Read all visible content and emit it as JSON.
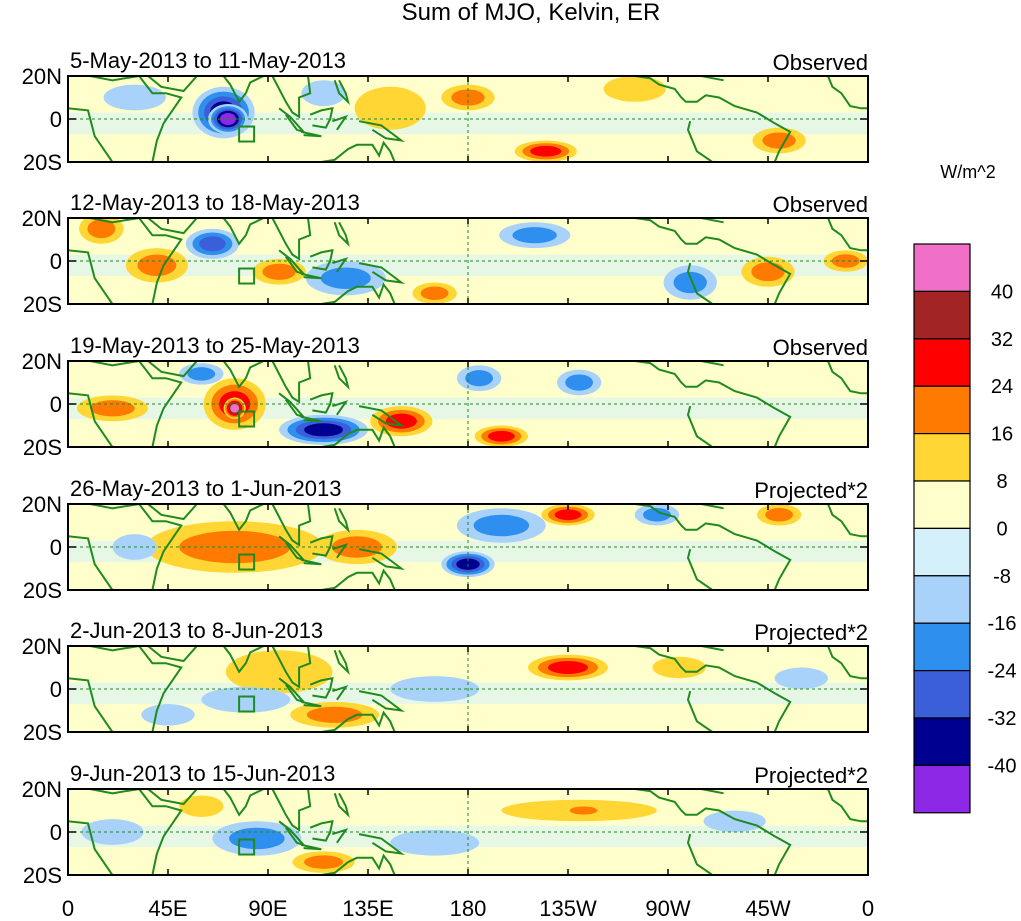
{
  "title": "Sum of MJO, Kelvin, ER",
  "units": "W/m^2",
  "lat_labels": [
    "20N",
    "0",
    "20S"
  ],
  "lon_labels": [
    "0",
    "45E",
    "90E",
    "135E",
    "180",
    "135W",
    "90W",
    "45W",
    "0"
  ],
  "colorbar": {
    "colors": [
      "#f070c8",
      "#a32424",
      "#ff0000",
      "#ff7a00",
      "#ffd633",
      "#ffffcc",
      "#d4f1fb",
      "#a8d2fa",
      "#2f8fef",
      "#3a5fd8",
      "#000090",
      "#8c28e6"
    ],
    "tick_labels": [
      "40",
      "32",
      "24",
      "16",
      "8",
      "0",
      "-8",
      "-16",
      "-24",
      "-32",
      "-40"
    ]
  },
  "panels": [
    {
      "date_range": "5-May-2013 to 11-May-2013",
      "status": "Observed",
      "blobs": [
        {
          "lon": 70,
          "lat": 3,
          "rlon": 14,
          "rlat": 12,
          "level": -34
        },
        {
          "lon": 72,
          "lat": 0,
          "rlon": 9,
          "rlat": 7,
          "level": -42
        },
        {
          "lon": 145,
          "lat": 5,
          "rlon": 16,
          "rlat": 10,
          "level": 10
        },
        {
          "lon": 180,
          "lat": 10,
          "rlon": 12,
          "rlat": 6,
          "level": 18
        },
        {
          "lon": 215,
          "lat": -15,
          "rlon": 14,
          "rlat": 5,
          "level": 30
        },
        {
          "lon": 255,
          "lat": 14,
          "rlon": 14,
          "rlat": 6,
          "level": 12
        },
        {
          "lon": 320,
          "lat": -10,
          "rlon": 12,
          "rlat": 6,
          "level": 16
        },
        {
          "lon": 115,
          "lat": 12,
          "rlon": 10,
          "rlat": 6,
          "level": -15
        },
        {
          "lon": 30,
          "lat": 10,
          "rlon": 14,
          "rlat": 6,
          "level": -12
        }
      ]
    },
    {
      "date_range": "12-May-2013 to 18-May-2013",
      "status": "Observed",
      "blobs": [
        {
          "lon": 15,
          "lat": 15,
          "rlon": 10,
          "rlat": 7,
          "level": 22
        },
        {
          "lon": 40,
          "lat": -2,
          "rlon": 14,
          "rlat": 8,
          "level": 16
        },
        {
          "lon": 65,
          "lat": 8,
          "rlon": 12,
          "rlat": 7,
          "level": -30
        },
        {
          "lon": 95,
          "lat": -5,
          "rlon": 12,
          "rlat": 6,
          "level": 20
        },
        {
          "lon": 125,
          "lat": -8,
          "rlon": 18,
          "rlat": 8,
          "level": -20
        },
        {
          "lon": 210,
          "lat": 12,
          "rlon": 16,
          "rlat": 6,
          "level": -18
        },
        {
          "lon": 280,
          "lat": -10,
          "rlon": 12,
          "rlat": 8,
          "level": -20
        },
        {
          "lon": 315,
          "lat": -5,
          "rlon": 12,
          "rlat": 7,
          "level": 20
        },
        {
          "lon": 350,
          "lat": 0,
          "rlon": 10,
          "rlat": 5,
          "level": 18
        },
        {
          "lon": 165,
          "lat": -15,
          "rlon": 10,
          "rlat": 5,
          "level": 18
        }
      ]
    },
    {
      "date_range": "19-May-2013 to 25-May-2013",
      "status": "Observed",
      "blobs": [
        {
          "lon": 75,
          "lat": 0,
          "rlon": 14,
          "rlat": 12,
          "level": 30
        },
        {
          "lon": 75,
          "lat": -2,
          "rlon": 5,
          "rlat": 5,
          "level": 42
        },
        {
          "lon": 115,
          "lat": -12,
          "rlon": 20,
          "rlat": 7,
          "level": -38
        },
        {
          "lon": 150,
          "lat": -8,
          "rlon": 14,
          "rlat": 7,
          "level": 26
        },
        {
          "lon": 195,
          "lat": -15,
          "rlon": 12,
          "rlat": 5,
          "level": 28
        },
        {
          "lon": 20,
          "lat": -2,
          "rlon": 16,
          "rlat": 6,
          "level": 18
        },
        {
          "lon": 185,
          "lat": 12,
          "rlon": 10,
          "rlat": 6,
          "level": -20
        },
        {
          "lon": 230,
          "lat": 10,
          "rlon": 10,
          "rlat": 6,
          "level": -16
        },
        {
          "lon": 60,
          "lat": 14,
          "rlon": 10,
          "rlat": 5,
          "level": -16
        }
      ]
    },
    {
      "date_range": "26-May-2013 to 1-Jun-2013",
      "status": "Projected*2",
      "blobs": [
        {
          "lon": 75,
          "lat": 0,
          "rlon": 40,
          "rlat": 12,
          "level": 18
        },
        {
          "lon": 130,
          "lat": 0,
          "rlon": 18,
          "rlat": 8,
          "level": 20
        },
        {
          "lon": 180,
          "lat": -8,
          "rlon": 12,
          "rlat": 6,
          "level": -36
        },
        {
          "lon": 195,
          "lat": 10,
          "rlon": 20,
          "rlat": 8,
          "level": -22
        },
        {
          "lon": 225,
          "lat": 15,
          "rlon": 12,
          "rlat": 5,
          "level": 24
        },
        {
          "lon": 265,
          "lat": 15,
          "rlon": 10,
          "rlat": 5,
          "level": -16
        },
        {
          "lon": 320,
          "lat": 15,
          "rlon": 10,
          "rlat": 5,
          "level": 18
        },
        {
          "lon": 30,
          "lat": 0,
          "rlon": 10,
          "rlat": 6,
          "level": -12
        }
      ]
    },
    {
      "date_range": "2-Jun-2013 to 8-Jun-2013",
      "status": "Projected*2",
      "blobs": [
        {
          "lon": 95,
          "lat": 8,
          "rlon": 24,
          "rlat": 10,
          "level": 12
        },
        {
          "lon": 120,
          "lat": -12,
          "rlon": 20,
          "rlat": 6,
          "level": 20
        },
        {
          "lon": 225,
          "lat": 10,
          "rlon": 18,
          "rlat": 6,
          "level": 24
        },
        {
          "lon": 80,
          "lat": -5,
          "rlon": 20,
          "rlat": 6,
          "level": -14
        },
        {
          "lon": 165,
          "lat": 0,
          "rlon": 20,
          "rlat": 6,
          "level": -10
        },
        {
          "lon": 275,
          "lat": 10,
          "rlon": 12,
          "rlat": 5,
          "level": 10
        },
        {
          "lon": 330,
          "lat": 5,
          "rlon": 12,
          "rlat": 5,
          "level": -12
        },
        {
          "lon": 45,
          "lat": -12,
          "rlon": 12,
          "rlat": 5,
          "level": -10
        }
      ]
    },
    {
      "date_range": "9-Jun-2013 to 15-Jun-2013",
      "status": "Projected*2",
      "blobs": [
        {
          "lon": 85,
          "lat": -3,
          "rlon": 20,
          "rlat": 8,
          "level": -20
        },
        {
          "lon": 115,
          "lat": -14,
          "rlon": 14,
          "rlat": 5,
          "level": 22
        },
        {
          "lon": 230,
          "lat": 10,
          "rlon": 35,
          "rlat": 5,
          "level": 12
        },
        {
          "lon": 232,
          "lat": 10,
          "rlon": 10,
          "rlat": 3,
          "level": 20
        },
        {
          "lon": 60,
          "lat": 12,
          "rlon": 10,
          "rlat": 5,
          "level": 12
        },
        {
          "lon": 165,
          "lat": -5,
          "rlon": 20,
          "rlat": 6,
          "level": -12
        },
        {
          "lon": 300,
          "lat": 5,
          "rlon": 14,
          "rlat": 5,
          "level": -10
        },
        {
          "lon": 20,
          "lat": 0,
          "rlon": 14,
          "rlat": 6,
          "level": -10
        }
      ]
    }
  ]
}
